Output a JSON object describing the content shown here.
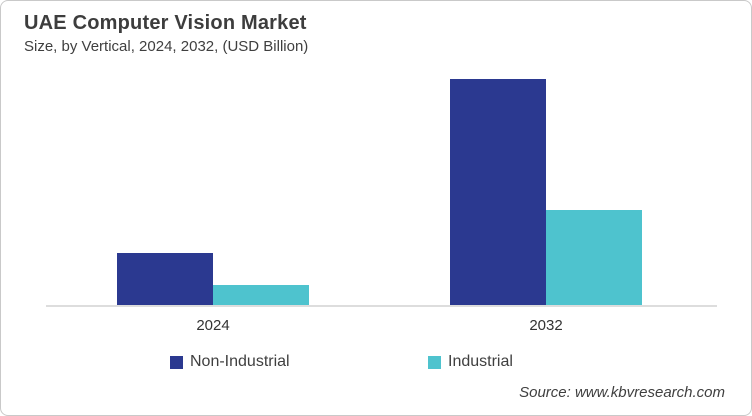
{
  "header": {
    "title": "UAE Computer Vision Market",
    "subtitle": "Size, by Vertical, 2024, 2032, (USD Billion)"
  },
  "chart_data": {
    "type": "bar",
    "title": "UAE Computer Vision Market",
    "subtitle": "Size, by Vertical, 2024, 2032, (USD Billion)",
    "categories": [
      "2024",
      "2032"
    ],
    "series": [
      {
        "name": "Non-Industrial",
        "color": "#2B3990",
        "values": [
          0.23,
          1.0
        ]
      },
      {
        "name": "Industrial",
        "color": "#4EC3CE",
        "values": [
          0.09,
          0.42
        ]
      }
    ],
    "ylabel": "",
    "xlabel": "",
    "ylim": [
      0,
      1.05
    ],
    "value_axis_visible": false,
    "grid": false,
    "legend_position": "bottom",
    "baseline_color": "#DDDDDD"
  },
  "source": {
    "text": "Source: www.kbvresearch.com"
  }
}
